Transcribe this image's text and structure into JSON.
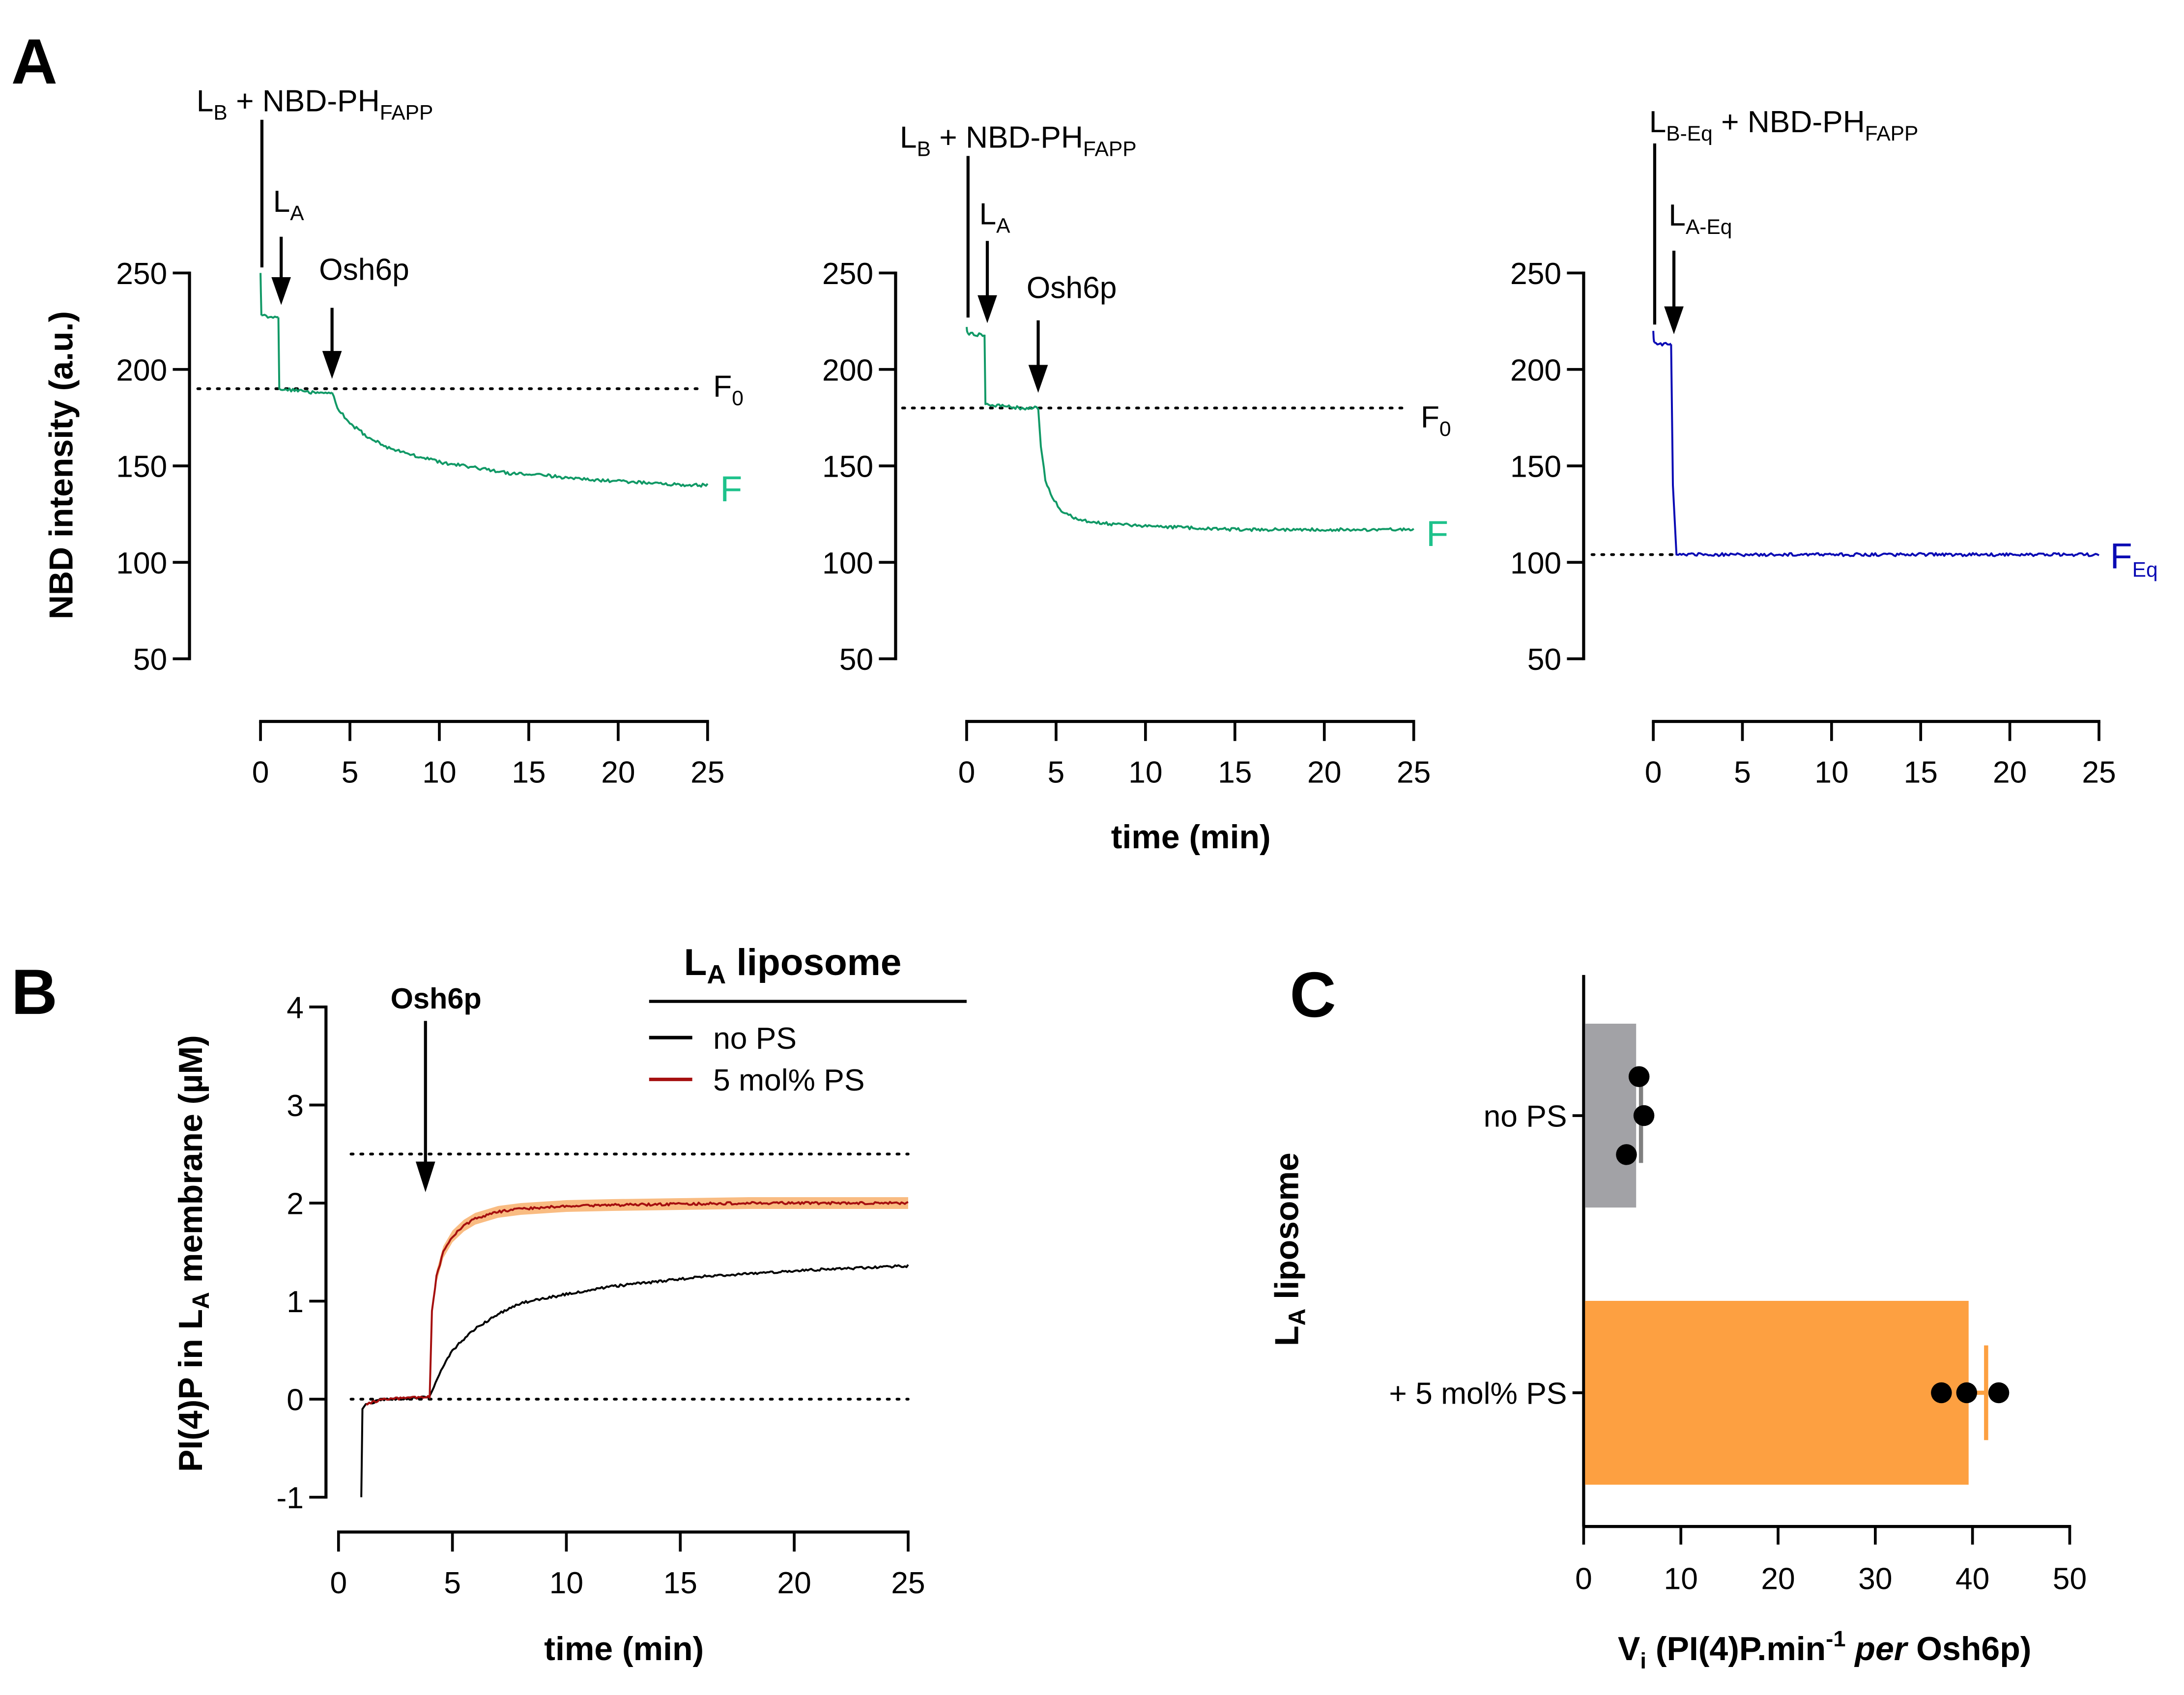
{
  "figure": {
    "panels": {
      "A": {
        "letter": "A"
      },
      "B": {
        "letter": "B"
      },
      "C": {
        "letter": "C"
      }
    }
  },
  "colors": {
    "green_trace": "#119966",
    "green_label": "#1ec28b",
    "blue_trace": "#0a0ab4",
    "red_trace": "#a50f0f",
    "orange_band": "#f8b574",
    "gray_bar": "#a2a2a6",
    "gray_error": "#808080",
    "orange_bar": "#fda041",
    "black": "#000000"
  },
  "chart_data": [
    {
      "id": "A1",
      "type": "line",
      "title": "",
      "ylabel": "NBD intensity (a.u.)",
      "xlabel": "",
      "xlim": [
        0,
        25
      ],
      "ylim": [
        50,
        250
      ],
      "xticks": [
        "0",
        "5",
        "10",
        "15",
        "20",
        "25"
      ],
      "yticks": [
        "50",
        "100",
        "150",
        "200",
        "250"
      ],
      "series": [
        {
          "name": "F",
          "color": "#119966",
          "segments": [
            {
              "x": [
                0,
                0.02,
                0.05
              ],
              "y": [
                250,
                240,
                228
              ]
            },
            {
              "x": [
                0.05,
                0.5,
                1.0
              ],
              "y": [
                228,
                227,
                227
              ]
            },
            {
              "x": [
                1.0,
                1.05,
                2,
                3,
                4
              ],
              "y": [
                227,
                190,
                189,
                188,
                188
              ]
            },
            {
              "x": [
                4,
                4.3,
                5,
                6,
                7,
                8,
                10,
                12,
                14,
                16,
                18,
                20,
                22,
                24,
                25
              ],
              "y": [
                188,
                180,
                172,
                165,
                160,
                157,
                152,
                149,
                146,
                145,
                143,
                142,
                141,
                140,
                140
              ]
            }
          ]
        }
      ],
      "reference_lines": [
        {
          "label": "F0",
          "y": 190,
          "style": "dotted"
        }
      ],
      "annotations": [
        {
          "text": "LB + NBD-PHFAPP",
          "main": "L",
          "sub1": "B",
          "mid": " + NBD-PH",
          "sub2": "FAPP",
          "x": 0,
          "type": "line"
        },
        {
          "text": "LA",
          "main": "L",
          "sub1": "A",
          "x": 1,
          "type": "arrow"
        },
        {
          "text": "Osh6p",
          "main": "Osh6p",
          "x": 4,
          "type": "arrow"
        }
      ],
      "end_label": {
        "main": "F",
        "sub": ""
      },
      "ref_label": {
        "main": "F",
        "sub": "0"
      }
    },
    {
      "id": "A2",
      "type": "line",
      "title": "",
      "ylabel": "",
      "xlabel": "time (min)",
      "xlim": [
        0,
        25
      ],
      "ylim": [
        50,
        250
      ],
      "xticks": [
        "0",
        "5",
        "10",
        "15",
        "20",
        "25"
      ],
      "yticks": [
        "50",
        "100",
        "150",
        "200",
        "250"
      ],
      "series": [
        {
          "name": "F",
          "color": "#119966",
          "segments": [
            {
              "x": [
                0,
                0.02,
                0.05
              ],
              "y": [
                222,
                220,
                219
              ]
            },
            {
              "x": [
                0.05,
                0.5,
                1.0
              ],
              "y": [
                219,
                218,
                218
              ]
            },
            {
              "x": [
                1.0,
                1.05,
                2,
                3,
                4
              ],
              "y": [
                218,
                182,
                181,
                180,
                180
              ]
            },
            {
              "x": [
                4,
                4.15,
                4.4,
                4.8,
                5.3,
                6,
                7,
                8,
                10,
                12,
                15,
                18,
                21,
                25
              ],
              "y": [
                180,
                160,
                143,
                133,
                127,
                123,
                121,
                120,
                119,
                118,
                117,
                117,
                117,
                117
              ]
            }
          ]
        }
      ],
      "reference_lines": [
        {
          "label": "F0",
          "y": 180,
          "style": "dotted"
        }
      ],
      "annotations": [
        {
          "text": "LB + NBD-PHFAPP",
          "main": "L",
          "sub1": "B",
          "mid": " + NBD-PH",
          "sub2": "FAPP",
          "x": 0,
          "type": "line"
        },
        {
          "text": "LA",
          "main": "L",
          "sub1": "A",
          "x": 1,
          "type": "arrow"
        },
        {
          "text": "Osh6p",
          "main": "Osh6p",
          "x": 4,
          "type": "arrow"
        }
      ],
      "end_label": {
        "main": "F",
        "sub": ""
      },
      "ref_label": {
        "main": "F",
        "sub": "0"
      }
    },
    {
      "id": "A3",
      "type": "line",
      "title": "",
      "ylabel": "",
      "xlabel": "",
      "xlim": [
        0,
        25
      ],
      "ylim": [
        50,
        250
      ],
      "xticks": [
        "0",
        "5",
        "10",
        "15",
        "20",
        "25"
      ],
      "yticks": [
        "50",
        "100",
        "150",
        "200",
        "250"
      ],
      "series": [
        {
          "name": "FEq",
          "color": "#0a0ab4",
          "segments": [
            {
              "x": [
                0,
                0.02,
                0.05
              ],
              "y": [
                220,
                216,
                214
              ]
            },
            {
              "x": [
                0.05,
                0.5,
                1.0
              ],
              "y": [
                214,
                213,
                213
              ]
            },
            {
              "x": [
                1.0,
                1.1,
                1.3,
                5,
                10,
                15,
                20,
                25
              ],
              "y": [
                213,
                140,
                104,
                104,
                104,
                104,
                104,
                104
              ]
            }
          ]
        }
      ],
      "reference_lines": [
        {
          "label": "FEq",
          "y": 104,
          "style": "dotted",
          "xmax": 1.2
        }
      ],
      "annotations": [
        {
          "text": "LB-Eq + NBD-PHFAPP",
          "main": "L",
          "sub1": "B-Eq",
          "mid": " + NBD-PH",
          "sub2": "FAPP",
          "x": 0,
          "type": "line"
        },
        {
          "text": "LA-Eq",
          "main": "L",
          "sub1": "A-Eq",
          "x": 1,
          "type": "arrow"
        }
      ],
      "end_label": {
        "main": "F",
        "sub": "Eq"
      }
    },
    {
      "id": "B",
      "type": "line",
      "title": "",
      "ylabel": "PI(4)P in LA membrane (µM)",
      "ylabel_parts": {
        "a": "PI(4)P  in L",
        "sub": "A",
        "b": " membrane (µM)"
      },
      "xlabel": "time (min)",
      "xlim": [
        0,
        25
      ],
      "ylim": [
        -1,
        4
      ],
      "xticks": [
        "0",
        "5",
        "10",
        "15",
        "20",
        "25"
      ],
      "yticks": [
        "-1",
        "0",
        "1",
        "2",
        "3",
        "4"
      ],
      "legend": {
        "title": "LA liposome",
        "title_main": "L",
        "title_sub": "A",
        "title_rest": " liposome",
        "placement": "top-right",
        "entries": [
          {
            "label": "no PS",
            "color": "#000000"
          },
          {
            "label": "5 mol% PS",
            "color": "#a50f0f"
          }
        ]
      },
      "series": [
        {
          "name": "no PS",
          "color": "#000000",
          "x": [
            1.0,
            1.05,
            1.2,
            2,
            3,
            4,
            4.1,
            4.5,
            5,
            6,
            7,
            8,
            10,
            12,
            14,
            16,
            18,
            20,
            22,
            24,
            25
          ],
          "y": [
            -1.0,
            -0.1,
            -0.05,
            0.0,
            0.01,
            0.02,
            0.08,
            0.3,
            0.5,
            0.72,
            0.87,
            0.98,
            1.07,
            1.15,
            1.2,
            1.25,
            1.28,
            1.31,
            1.33,
            1.35,
            1.36
          ]
        },
        {
          "name": "5 mol% PS",
          "color": "#a50f0f",
          "band_color": "#f8b574",
          "band_halfwidth": 0.06,
          "x": [
            1.2,
            2,
            3,
            4,
            4.1,
            4.3,
            4.6,
            5,
            5.5,
            6,
            7,
            8,
            10,
            12,
            15,
            18,
            21,
            25
          ],
          "y": [
            -0.05,
            0.0,
            0.01,
            0.02,
            0.9,
            1.25,
            1.5,
            1.66,
            1.77,
            1.84,
            1.91,
            1.94,
            1.97,
            1.98,
            1.99,
            2.0,
            2.0,
            2.0
          ]
        }
      ],
      "reference_lines": [
        {
          "y": 2.5,
          "style": "dotted"
        },
        {
          "y": 0,
          "style": "dotted"
        }
      ],
      "annotations": [
        {
          "text": "Osh6p",
          "x": 4,
          "type": "arrow"
        }
      ]
    },
    {
      "id": "C",
      "type": "bar",
      "orientation": "horizontal",
      "title": "",
      "xlabel": "Vi (PI(4)P.min-1 per Osh6p)",
      "xlabel_parts": {
        "v": "V",
        "vsub": "i",
        "a": " (PI(4)P.min",
        "sup": "-1",
        "em": " per",
        "b": " Osh6p)"
      },
      "ylabel": "LA liposome",
      "ylabel_parts": {
        "main": "L",
        "sub": "A",
        "rest": " liposome"
      },
      "xlim": [
        0,
        50
      ],
      "xticks": [
        "0",
        "10",
        "20",
        "30",
        "40",
        "50"
      ],
      "categories": [
        "no PS",
        "+ 5 mol% PS"
      ],
      "values": [
        5.4,
        39.6
      ],
      "error": [
        0.5,
        1.8
      ],
      "points": [
        [
          5.7,
          6.2,
          4.4
        ],
        [
          36.8,
          39.4,
          42.7
        ]
      ],
      "bar_colors": [
        "#a2a2a6",
        "#fda041"
      ],
      "error_colors": [
        "#808080",
        "#fda041"
      ]
    }
  ]
}
